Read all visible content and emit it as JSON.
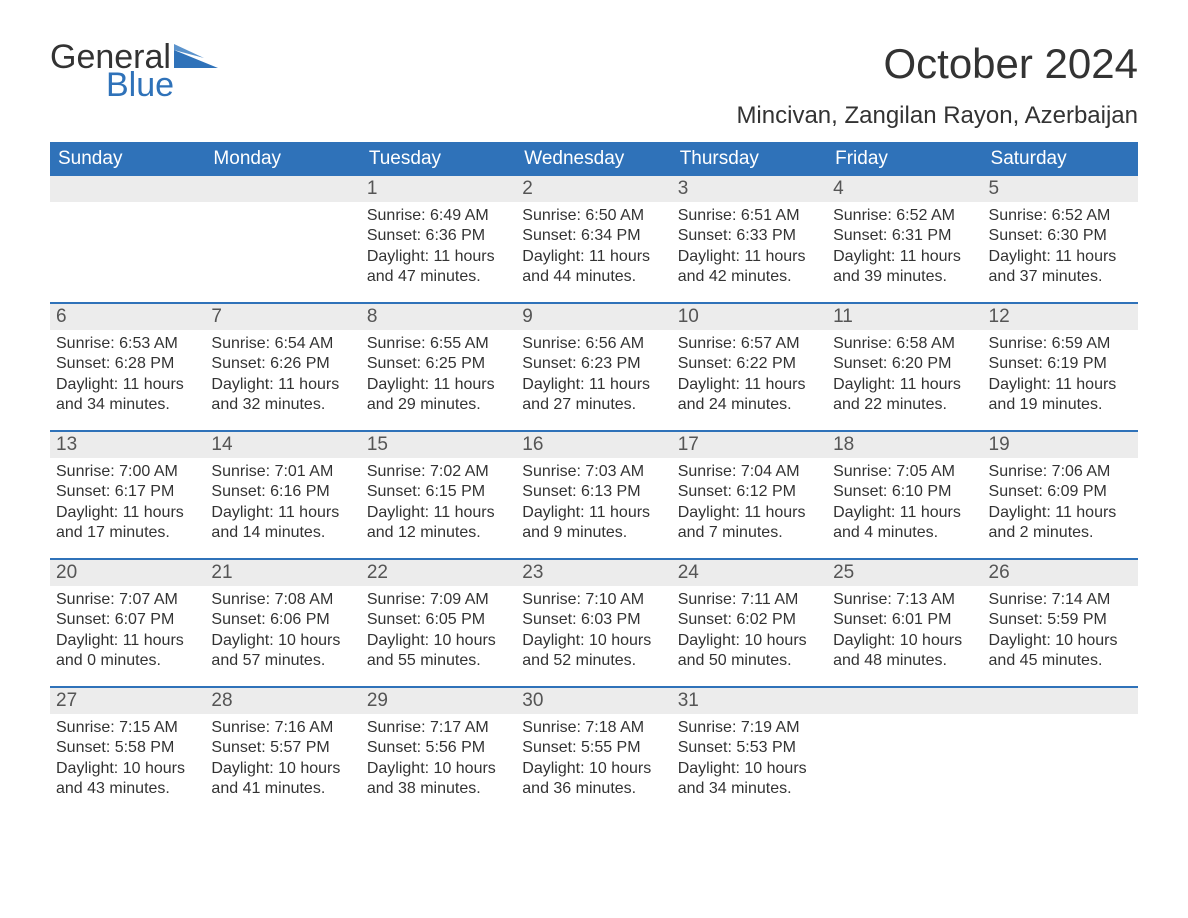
{
  "brand": {
    "word1": "General",
    "word2": "Blue",
    "color_text": "#333333",
    "color_blue": "#2f72b9"
  },
  "header": {
    "month_title": "October 2024",
    "location": "Mincivan, Zangilan Rayon, Azerbaijan"
  },
  "styling": {
    "page_bg": "#ffffff",
    "header_row_bg": "#2f72b9",
    "header_row_text": "#ffffff",
    "daynum_bg": "#ececec",
    "daynum_border": "#2f72b9",
    "body_text": "#333333",
    "font_family": "Arial",
    "month_title_fontsize": 42,
    "location_fontsize": 24,
    "weekday_fontsize": 19,
    "cell_fontsize": 16
  },
  "weekdays": [
    "Sunday",
    "Monday",
    "Tuesday",
    "Wednesday",
    "Thursday",
    "Friday",
    "Saturday"
  ],
  "weeks": [
    [
      null,
      null,
      {
        "n": "1",
        "sunrise": "Sunrise: 6:49 AM",
        "sunset": "Sunset: 6:36 PM",
        "dl1": "Daylight: 11 hours",
        "dl2": "and 47 minutes."
      },
      {
        "n": "2",
        "sunrise": "Sunrise: 6:50 AM",
        "sunset": "Sunset: 6:34 PM",
        "dl1": "Daylight: 11 hours",
        "dl2": "and 44 minutes."
      },
      {
        "n": "3",
        "sunrise": "Sunrise: 6:51 AM",
        "sunset": "Sunset: 6:33 PM",
        "dl1": "Daylight: 11 hours",
        "dl2": "and 42 minutes."
      },
      {
        "n": "4",
        "sunrise": "Sunrise: 6:52 AM",
        "sunset": "Sunset: 6:31 PM",
        "dl1": "Daylight: 11 hours",
        "dl2": "and 39 minutes."
      },
      {
        "n": "5",
        "sunrise": "Sunrise: 6:52 AM",
        "sunset": "Sunset: 6:30 PM",
        "dl1": "Daylight: 11 hours",
        "dl2": "and 37 minutes."
      }
    ],
    [
      {
        "n": "6",
        "sunrise": "Sunrise: 6:53 AM",
        "sunset": "Sunset: 6:28 PM",
        "dl1": "Daylight: 11 hours",
        "dl2": "and 34 minutes."
      },
      {
        "n": "7",
        "sunrise": "Sunrise: 6:54 AM",
        "sunset": "Sunset: 6:26 PM",
        "dl1": "Daylight: 11 hours",
        "dl2": "and 32 minutes."
      },
      {
        "n": "8",
        "sunrise": "Sunrise: 6:55 AM",
        "sunset": "Sunset: 6:25 PM",
        "dl1": "Daylight: 11 hours",
        "dl2": "and 29 minutes."
      },
      {
        "n": "9",
        "sunrise": "Sunrise: 6:56 AM",
        "sunset": "Sunset: 6:23 PM",
        "dl1": "Daylight: 11 hours",
        "dl2": "and 27 minutes."
      },
      {
        "n": "10",
        "sunrise": "Sunrise: 6:57 AM",
        "sunset": "Sunset: 6:22 PM",
        "dl1": "Daylight: 11 hours",
        "dl2": "and 24 minutes."
      },
      {
        "n": "11",
        "sunrise": "Sunrise: 6:58 AM",
        "sunset": "Sunset: 6:20 PM",
        "dl1": "Daylight: 11 hours",
        "dl2": "and 22 minutes."
      },
      {
        "n": "12",
        "sunrise": "Sunrise: 6:59 AM",
        "sunset": "Sunset: 6:19 PM",
        "dl1": "Daylight: 11 hours",
        "dl2": "and 19 minutes."
      }
    ],
    [
      {
        "n": "13",
        "sunrise": "Sunrise: 7:00 AM",
        "sunset": "Sunset: 6:17 PM",
        "dl1": "Daylight: 11 hours",
        "dl2": "and 17 minutes."
      },
      {
        "n": "14",
        "sunrise": "Sunrise: 7:01 AM",
        "sunset": "Sunset: 6:16 PM",
        "dl1": "Daylight: 11 hours",
        "dl2": "and 14 minutes."
      },
      {
        "n": "15",
        "sunrise": "Sunrise: 7:02 AM",
        "sunset": "Sunset: 6:15 PM",
        "dl1": "Daylight: 11 hours",
        "dl2": "and 12 minutes."
      },
      {
        "n": "16",
        "sunrise": "Sunrise: 7:03 AM",
        "sunset": "Sunset: 6:13 PM",
        "dl1": "Daylight: 11 hours",
        "dl2": "and 9 minutes."
      },
      {
        "n": "17",
        "sunrise": "Sunrise: 7:04 AM",
        "sunset": "Sunset: 6:12 PM",
        "dl1": "Daylight: 11 hours",
        "dl2": "and 7 minutes."
      },
      {
        "n": "18",
        "sunrise": "Sunrise: 7:05 AM",
        "sunset": "Sunset: 6:10 PM",
        "dl1": "Daylight: 11 hours",
        "dl2": "and 4 minutes."
      },
      {
        "n": "19",
        "sunrise": "Sunrise: 7:06 AM",
        "sunset": "Sunset: 6:09 PM",
        "dl1": "Daylight: 11 hours",
        "dl2": "and 2 minutes."
      }
    ],
    [
      {
        "n": "20",
        "sunrise": "Sunrise: 7:07 AM",
        "sunset": "Sunset: 6:07 PM",
        "dl1": "Daylight: 11 hours",
        "dl2": "and 0 minutes."
      },
      {
        "n": "21",
        "sunrise": "Sunrise: 7:08 AM",
        "sunset": "Sunset: 6:06 PM",
        "dl1": "Daylight: 10 hours",
        "dl2": "and 57 minutes."
      },
      {
        "n": "22",
        "sunrise": "Sunrise: 7:09 AM",
        "sunset": "Sunset: 6:05 PM",
        "dl1": "Daylight: 10 hours",
        "dl2": "and 55 minutes."
      },
      {
        "n": "23",
        "sunrise": "Sunrise: 7:10 AM",
        "sunset": "Sunset: 6:03 PM",
        "dl1": "Daylight: 10 hours",
        "dl2": "and 52 minutes."
      },
      {
        "n": "24",
        "sunrise": "Sunrise: 7:11 AM",
        "sunset": "Sunset: 6:02 PM",
        "dl1": "Daylight: 10 hours",
        "dl2": "and 50 minutes."
      },
      {
        "n": "25",
        "sunrise": "Sunrise: 7:13 AM",
        "sunset": "Sunset: 6:01 PM",
        "dl1": "Daylight: 10 hours",
        "dl2": "and 48 minutes."
      },
      {
        "n": "26",
        "sunrise": "Sunrise: 7:14 AM",
        "sunset": "Sunset: 5:59 PM",
        "dl1": "Daylight: 10 hours",
        "dl2": "and 45 minutes."
      }
    ],
    [
      {
        "n": "27",
        "sunrise": "Sunrise: 7:15 AM",
        "sunset": "Sunset: 5:58 PM",
        "dl1": "Daylight: 10 hours",
        "dl2": "and 43 minutes."
      },
      {
        "n": "28",
        "sunrise": "Sunrise: 7:16 AM",
        "sunset": "Sunset: 5:57 PM",
        "dl1": "Daylight: 10 hours",
        "dl2": "and 41 minutes."
      },
      {
        "n": "29",
        "sunrise": "Sunrise: 7:17 AM",
        "sunset": "Sunset: 5:56 PM",
        "dl1": "Daylight: 10 hours",
        "dl2": "and 38 minutes."
      },
      {
        "n": "30",
        "sunrise": "Sunrise: 7:18 AM",
        "sunset": "Sunset: 5:55 PM",
        "dl1": "Daylight: 10 hours",
        "dl2": "and 36 minutes."
      },
      {
        "n": "31",
        "sunrise": "Sunrise: 7:19 AM",
        "sunset": "Sunset: 5:53 PM",
        "dl1": "Daylight: 10 hours",
        "dl2": "and 34 minutes."
      },
      null,
      null
    ]
  ]
}
